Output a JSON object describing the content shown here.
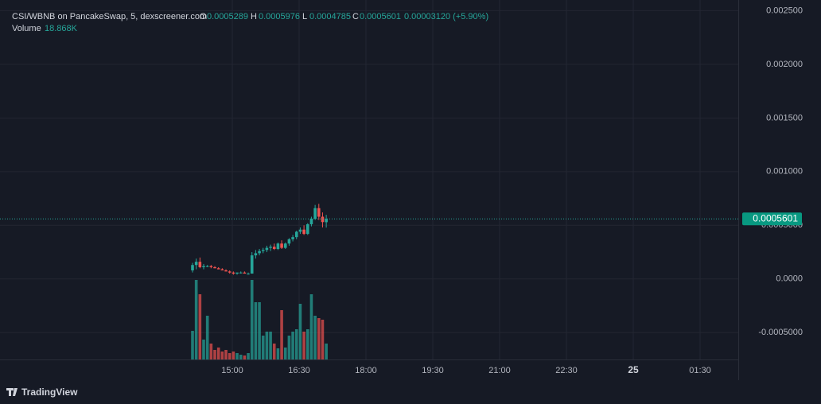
{
  "header": {
    "title": "CSI/WBNB on PancakeSwap, 5, dexscreener.com",
    "ohlc": [
      {
        "label": "O",
        "value": "0.0005289"
      },
      {
        "label": "H",
        "value": "0.0005976"
      },
      {
        "label": "L",
        "value": "0.0004785"
      },
      {
        "label": "C",
        "value": "0.0005601"
      }
    ],
    "change": "0.00003120 (+5.90%)",
    "volume_label": "Volume",
    "volume_value": "18.868K"
  },
  "chart_data": {
    "type": "candlestick",
    "open": [
      8e-05,
      0.00013,
      0.00016,
      0.00011,
      0.00012,
      0.00012,
      0.00011,
      0.0001,
      9e-05,
      8e-05,
      7e-05,
      6e-05,
      5e-05,
      6e-05,
      6e-05,
      5e-05,
      5e-05,
      0.00022,
      0.00024,
      0.00026,
      0.00027,
      0.00029,
      0.0003,
      0.00028,
      0.00033,
      0.00029,
      0.00033,
      0.00037,
      0.00039,
      0.00044,
      0.00046,
      0.00042,
      0.00051,
      0.00056,
      0.00066,
      0.00058,
      0.0005289
    ],
    "high": [
      0.00015,
      0.00019,
      0.0002,
      0.00014,
      0.00013,
      0.00013,
      0.00012,
      0.00011,
      0.0001,
      9e-05,
      8e-05,
      7e-05,
      6e-05,
      7e-05,
      7e-05,
      6e-05,
      0.00025,
      0.00027,
      0.00028,
      0.00029,
      0.00031,
      0.00032,
      0.00033,
      0.00034,
      0.00036,
      0.00034,
      0.00038,
      0.00041,
      0.00045,
      0.00048,
      0.0005,
      0.00052,
      0.00058,
      0.00069,
      0.0007,
      0.00062,
      0.0005976
    ],
    "low": [
      6e-05,
      9e-05,
      0.0001,
      9e-05,
      0.00011,
      0.0001,
      0.0001,
      9e-05,
      8e-05,
      7e-05,
      5e-05,
      4e-05,
      4e-05,
      5e-05,
      5e-05,
      4e-05,
      5e-05,
      0.00019,
      0.00022,
      0.00024,
      0.00025,
      0.00026,
      0.00027,
      0.00027,
      0.00028,
      0.00028,
      0.00031,
      0.00035,
      0.00037,
      0.00042,
      0.00041,
      0.00041,
      0.00049,
      0.00055,
      0.00055,
      0.00048,
      0.0004785
    ],
    "close": [
      0.00013,
      0.00016,
      0.00011,
      0.00012,
      0.00012,
      0.00011,
      0.0001,
      9e-05,
      8e-05,
      7e-05,
      6e-05,
      5e-05,
      6e-05,
      6e-05,
      5e-05,
      5e-05,
      0.00022,
      0.00024,
      0.00026,
      0.00027,
      0.00029,
      0.0003,
      0.00028,
      0.00033,
      0.00029,
      0.00033,
      0.00037,
      0.00039,
      0.00044,
      0.00046,
      0.00042,
      0.00051,
      0.00056,
      0.00066,
      0.00058,
      0.00053,
      0.0005601
    ],
    "volume": [
      36,
      100,
      82,
      25,
      55,
      20,
      12,
      15,
      10,
      12,
      8,
      10,
      8,
      6,
      5,
      8,
      100,
      72,
      72,
      30,
      35,
      35,
      20,
      14,
      62,
      15,
      30,
      35,
      38,
      70,
      35,
      38,
      82,
      55,
      52,
      50,
      20
    ],
    "up_color": "#26a69a",
    "down_color": "#ef5350",
    "ylim": [
      -0.00075,
      0.00254
    ],
    "yticks": [
      {
        "value": 0.0025,
        "label": "0.002500"
      },
      {
        "value": 0.002,
        "label": "0.002000"
      },
      {
        "value": 0.0015,
        "label": "0.001500"
      },
      {
        "value": 0.001,
        "label": "0.001000"
      },
      {
        "value": 0.0005,
        "label": "0.0005000"
      },
      {
        "value": 0,
        "label": "0.0000"
      },
      {
        "value": -0.0005,
        "label": "-0.0005000"
      }
    ],
    "x_labels": [
      "15:00",
      "16:30",
      "18:00",
      "19:30",
      "21:00",
      "22:30",
      "25",
      "01:30"
    ],
    "grid": true
  },
  "footer": {
    "brand": "TradingView"
  }
}
